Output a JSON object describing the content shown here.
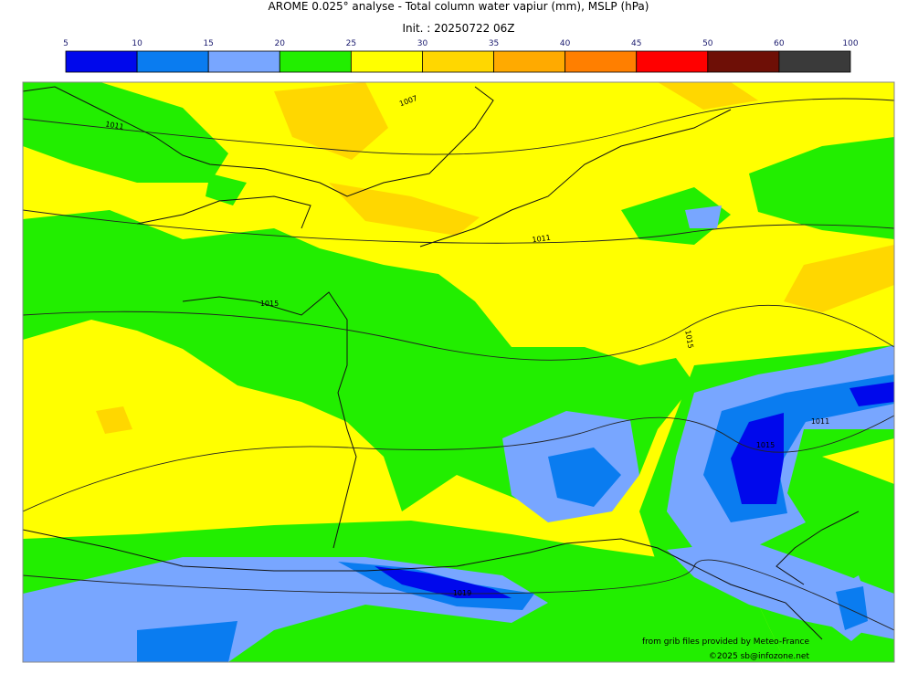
{
  "header": {
    "title": "AROME 0.025° analyse - Total column water vapiur (mm), MSLP (hPa)",
    "subtitle": "Init. : 20250722 06Z"
  },
  "colorbar": {
    "ticks": [
      5,
      10,
      15,
      20,
      25,
      30,
      35,
      40,
      45,
      50,
      60,
      100
    ],
    "colors": [
      "#0008ec",
      "#0a7cf0",
      "#78a6ff",
      "#22ee00",
      "#ffff00",
      "#ffd700",
      "#ffaa00",
      "#ff7f00",
      "#ff0000",
      "#6e0f06",
      "#3a3a3a"
    ]
  },
  "isobar_labels": [
    "1007",
    "1011",
    "1011",
    "1015",
    "1015",
    "1015",
    "1011",
    "1019"
  ],
  "credits": {
    "source": "from grib files provided by Meteo-France",
    "copyright": "©2025 sb@infozone.net"
  }
}
